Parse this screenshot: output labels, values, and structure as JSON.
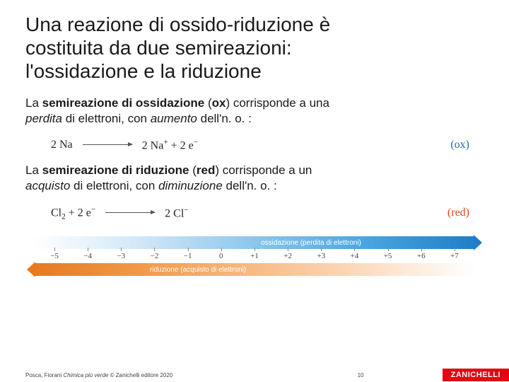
{
  "title_line1": "Una reazione di ossido-riduzione è",
  "title_line2": "costituita da due semireazioni:",
  "title_line3": "l'ossidazione e la riduzione",
  "para_ox_1": "La ",
  "para_ox_bold": "semireazione di ossidazione ",
  "para_ox_2": "(",
  "para_ox_boldkey": "ox",
  "para_ox_3": ") corrisponde a una ",
  "para_ox_it1": "perdita ",
  "para_ox_4": "di elettroni, con ",
  "para_ox_it2": "aumento ",
  "para_ox_5": "dell'n. o. :",
  "eq_ox_left": "2 Na",
  "eq_ox_right_a": "2 Na",
  "eq_ox_right_b": " + 2 e",
  "eq_ox_tag": "(ox)",
  "para_red_1": "La ",
  "para_red_bold": "semireazione di riduzione ",
  "para_red_2": "(",
  "para_red_boldkey": "red",
  "para_red_3": ") corrisponde a un ",
  "para_red_it1": "acquisto ",
  "para_red_4": "di elettroni, con ",
  "para_red_it2": "diminuzione ",
  "para_red_5": "dell'n. o. :",
  "eq_red_left_a": "Cl",
  "eq_red_left_b": " + 2 e",
  "eq_red_right": "2 Cl",
  "eq_red_tag": "(red)",
  "bar_ox_label": "ossidazione (perdita di elettroni)",
  "bar_red_label": "riduzione (acquisto di elettroni)",
  "ticks": {
    "t0": "−5",
    "t1": "−4",
    "t2": "−3",
    "t3": "−2",
    "t4": "−1",
    "t5": "0",
    "t6": "+1",
    "t7": "+2",
    "t8": "+3",
    "t9": "+4",
    "t10": "+5",
    "t11": "+6",
    "t12": "+7"
  },
  "footer_a": "Posca, Fiorani ",
  "footer_it": "Chimica più verde ",
  "footer_b": "© Zanichelli editore 2020",
  "page": "10",
  "logo": "ZANICHELLI"
}
